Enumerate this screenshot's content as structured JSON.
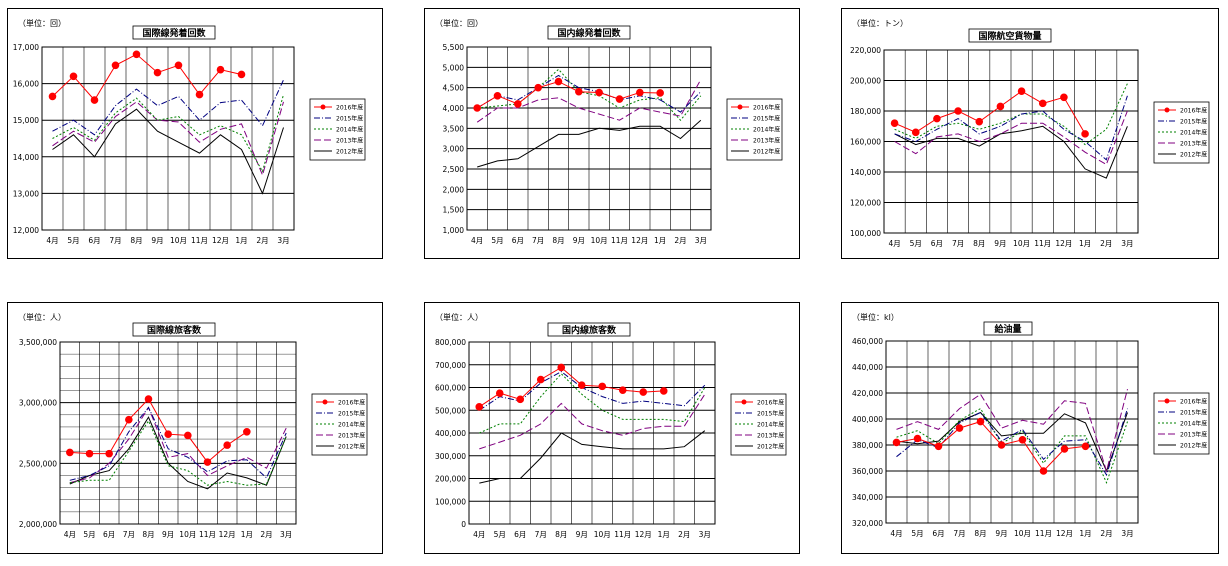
{
  "months": [
    "4月",
    "5月",
    "6月",
    "7月",
    "8月",
    "9月",
    "10月",
    "11月",
    "12月",
    "1月",
    "2月",
    "3月"
  ],
  "colors": {
    "2016年度": "#ff0000",
    "2015年度": "#000080",
    "2014年度": "#008000",
    "2013年度": "#800080",
    "2012年度": "#000000"
  },
  "chart_data": [
    {
      "type": "line",
      "title": "国際線発着回数",
      "unit": "（単位：回）",
      "categories": [
        "4月",
        "5月",
        "6月",
        "7月",
        "8月",
        "9月",
        "10月",
        "11月",
        "12月",
        "1月",
        "2月",
        "3月"
      ],
      "ylim": [
        12000,
        17000
      ],
      "yticks": [
        12000,
        13000,
        14000,
        15000,
        16000,
        17000
      ],
      "ytick_labels": [
        "12,000",
        "13,000",
        "14,000",
        "15,000",
        "16,000",
        "17,000"
      ],
      "grid": true,
      "legend": "right",
      "series": [
        {
          "name": "2016年度",
          "values": [
            15650,
            16200,
            15550,
            16500,
            16800,
            16300,
            16500,
            15700,
            16380,
            16250,
            null,
            null
          ]
        },
        {
          "name": "2015年度",
          "values": [
            14700,
            15000,
            14600,
            15400,
            15850,
            15400,
            15650,
            15000,
            15480,
            15550,
            14850,
            16100
          ]
        },
        {
          "name": "2014年度",
          "values": [
            14500,
            14800,
            14450,
            15200,
            15600,
            15000,
            15100,
            14600,
            14850,
            14600,
            13600,
            15700
          ]
        },
        {
          "name": "2013年度",
          "values": [
            14300,
            14700,
            14400,
            15100,
            15500,
            15000,
            14950,
            14400,
            14750,
            14900,
            13500,
            15500
          ]
        },
        {
          "name": "2012年度",
          "values": [
            14200,
            14600,
            14000,
            14900,
            15300,
            14700,
            14400,
            14100,
            14600,
            14200,
            13000,
            14800
          ]
        }
      ]
    },
    {
      "type": "line",
      "title": "国内線発着回数",
      "unit": "（単位：回）",
      "categories": [
        "4月",
        "5月",
        "6月",
        "7月",
        "8月",
        "9月",
        "10月",
        "11月",
        "12月",
        "1月",
        "2月",
        "3月"
      ],
      "ylim": [
        1000,
        5500
      ],
      "yticks": [
        1000,
        1500,
        2000,
        2500,
        3000,
        3500,
        4000,
        4500,
        5000,
        5500
      ],
      "ytick_labels": [
        "1,000",
        "1,500",
        "2,000",
        "2,500",
        "3,000",
        "3,500",
        "4,000",
        "4,500",
        "5,000",
        "5,500"
      ],
      "grid": true,
      "legend": "right",
      "series": [
        {
          "name": "2016年度",
          "values": [
            4000,
            4300,
            4100,
            4500,
            4650,
            4400,
            4380,
            4220,
            4380,
            4370,
            null,
            null
          ]
        },
        {
          "name": "2015年度",
          "values": [
            4000,
            4300,
            4200,
            4500,
            4800,
            4500,
            4400,
            4200,
            4300,
            4200,
            3900,
            4400
          ]
        },
        {
          "name": "2014年度",
          "values": [
            4000,
            4050,
            4100,
            4500,
            4950,
            4400,
            4300,
            4000,
            4200,
            4250,
            3700,
            4300
          ]
        },
        {
          "name": "2013年度",
          "values": [
            3650,
            4000,
            4000,
            4200,
            4250,
            4000,
            3850,
            3700,
            4000,
            3900,
            3800,
            4700
          ]
        },
        {
          "name": "2012年度",
          "values": [
            2550,
            2700,
            2750,
            3050,
            3350,
            3350,
            3500,
            3450,
            3550,
            3550,
            3250,
            3700
          ]
        }
      ]
    },
    {
      "type": "line",
      "title": "国際航空貨物量",
      "unit": "（単位：トン）",
      "categories": [
        "4月",
        "5月",
        "6月",
        "7月",
        "8月",
        "9月",
        "10月",
        "11月",
        "12月",
        "1月",
        "2月",
        "3月"
      ],
      "ylim": [
        100000,
        220000
      ],
      "yticks": [
        100000,
        120000,
        140000,
        160000,
        180000,
        200000,
        220000
      ],
      "ytick_labels": [
        "100,000",
        "120,000",
        "140,000",
        "160,000",
        "180,000",
        "200,000",
        "220,000"
      ],
      "grid": true,
      "legend": "right",
      "series": [
        {
          "name": "2016年度",
          "values": [
            172000,
            166000,
            175000,
            180000,
            173000,
            183000,
            193000,
            185000,
            189000,
            165000,
            null,
            null
          ]
        },
        {
          "name": "2015年度",
          "values": [
            165000,
            160000,
            168000,
            175000,
            165000,
            170000,
            178000,
            180000,
            168000,
            160000,
            148000,
            190000
          ]
        },
        {
          "name": "2014年度",
          "values": [
            168000,
            162000,
            170000,
            172000,
            168000,
            172000,
            178000,
            178000,
            170000,
            158000,
            168000,
            198000
          ]
        },
        {
          "name": "2013年度",
          "values": [
            160000,
            152000,
            163000,
            165000,
            160000,
            165000,
            172000,
            172000,
            163000,
            153000,
            145000,
            180000
          ]
        },
        {
          "name": "2012年度",
          "values": [
            165000,
            158000,
            162000,
            162000,
            157000,
            165000,
            167000,
            170000,
            160000,
            142000,
            136000,
            170000
          ]
        }
      ]
    },
    {
      "type": "line",
      "title": "国際線旅客数",
      "unit": "（単位：人）",
      "categories": [
        "4月",
        "5月",
        "6月",
        "7月",
        "8月",
        "9月",
        "10月",
        "11月",
        "12月",
        "1月",
        "2月",
        "3月"
      ],
      "ylim": [
        2000000,
        3500000
      ],
      "yticks": [
        2000000,
        2500000,
        3000000,
        3500000
      ],
      "ytick_labels": [
        "2,000,000",
        "2,500,000",
        "3,000,000",
        "3,500,000"
      ],
      "grid": true,
      "legend": "right",
      "series": [
        {
          "name": "2016年度",
          "values": [
            2590000,
            2580000,
            2580000,
            2860000,
            3030000,
            2740000,
            2730000,
            2510000,
            2650000,
            2760000,
            null,
            null
          ]
        },
        {
          "name": "2015年度",
          "values": [
            2360000,
            2400000,
            2480000,
            2760000,
            2960000,
            2620000,
            2550000,
            2430000,
            2520000,
            2530000,
            2380000,
            2750000
          ]
        },
        {
          "name": "2014年度",
          "values": [
            2340000,
            2360000,
            2360000,
            2600000,
            2850000,
            2480000,
            2440000,
            2320000,
            2350000,
            2320000,
            2330000,
            2720000
          ]
        },
        {
          "name": "2013年度",
          "values": [
            2340000,
            2380000,
            2500000,
            2700000,
            2960000,
            2550000,
            2580000,
            2400000,
            2480000,
            2550000,
            2460000,
            2790000
          ]
        },
        {
          "name": "2012年度",
          "values": [
            2330000,
            2400000,
            2440000,
            2620000,
            2880000,
            2500000,
            2350000,
            2290000,
            2420000,
            2380000,
            2320000,
            2720000
          ]
        }
      ]
    },
    {
      "type": "line",
      "title": "国内線旅客数",
      "unit": "（単位：人）",
      "categories": [
        "4月",
        "5月",
        "6月",
        "7月",
        "8月",
        "9月",
        "10月",
        "11月",
        "12月",
        "1月",
        "2月",
        "3月"
      ],
      "ylim": [
        0,
        800000
      ],
      "yticks": [
        0,
        100000,
        200000,
        300000,
        400000,
        500000,
        600000,
        700000,
        800000
      ],
      "ytick_labels": [
        "0",
        "100,000",
        "200,000",
        "300,000",
        "400,000",
        "500,000",
        "600,000",
        "700,000",
        "800,000"
      ],
      "grid": true,
      "legend": "right",
      "series": [
        {
          "name": "2016年度",
          "values": [
            515000,
            575000,
            548000,
            635000,
            688000,
            610000,
            605000,
            588000,
            580000,
            585000,
            null,
            null
          ]
        },
        {
          "name": "2015年度",
          "values": [
            500000,
            560000,
            540000,
            620000,
            670000,
            600000,
            560000,
            530000,
            540000,
            530000,
            520000,
            610000
          ]
        },
        {
          "name": "2014年度",
          "values": [
            400000,
            440000,
            440000,
            560000,
            660000,
            570000,
            500000,
            460000,
            460000,
            460000,
            450000,
            600000
          ]
        },
        {
          "name": "2013年度",
          "values": [
            330000,
            360000,
            390000,
            440000,
            530000,
            440000,
            410000,
            390000,
            420000,
            430000,
            430000,
            570000
          ]
        },
        {
          "name": "2012年度",
          "values": [
            180000,
            200000,
            200000,
            290000,
            400000,
            350000,
            340000,
            330000,
            330000,
            330000,
            340000,
            410000
          ]
        }
      ]
    },
    {
      "type": "line",
      "title": "給油量",
      "unit": "（単位：kl）",
      "categories": [
        "4月",
        "5月",
        "6月",
        "7月",
        "8月",
        "9月",
        "10月",
        "11月",
        "12月",
        "1月",
        "2月",
        "3月"
      ],
      "ylim": [
        320000,
        460000
      ],
      "yticks": [
        320000,
        340000,
        360000,
        380000,
        400000,
        420000,
        440000,
        460000
      ],
      "ytick_labels": [
        "320,000",
        "340,000",
        "360,000",
        "380,000",
        "400,000",
        "420,000",
        "440,000",
        "460,000"
      ],
      "grid": true,
      "legend": "right",
      "series": [
        {
          "name": "2016年度",
          "values": [
            382000,
            385000,
            379000,
            393000,
            398000,
            380000,
            384000,
            360000,
            377000,
            379000,
            null,
            null
          ]
        },
        {
          "name": "2015年度",
          "values": [
            371000,
            384000,
            378000,
            397000,
            405000,
            383000,
            392000,
            369000,
            383000,
            384000,
            357000,
            408000
          ]
        },
        {
          "name": "2014年度",
          "values": [
            386000,
            391000,
            381000,
            399000,
            408000,
            381000,
            391000,
            366000,
            387000,
            387000,
            351000,
            398000
          ]
        },
        {
          "name": "2013年度",
          "values": [
            392000,
            398000,
            392000,
            408000,
            419000,
            393000,
            399000,
            396000,
            414000,
            412000,
            360000,
            423000
          ]
        },
        {
          "name": "2012年度",
          "values": [
            383000,
            381000,
            383000,
            398000,
            405000,
            387000,
            389000,
            389000,
            404000,
            397000,
            360000,
            405000
          ]
        }
      ]
    }
  ]
}
